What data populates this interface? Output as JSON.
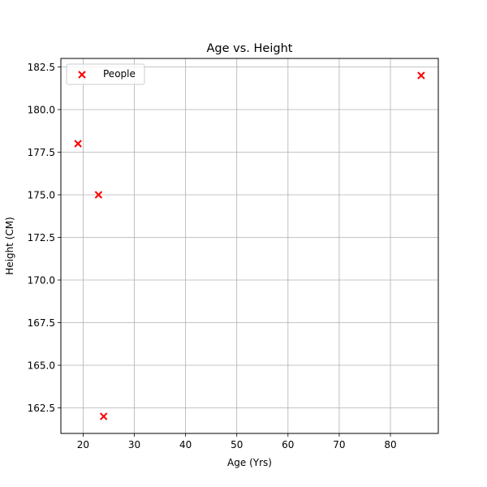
{
  "chart_data": {
    "type": "scatter",
    "title": "Age vs. Height",
    "xlabel": "Age (Yrs)",
    "ylabel": "Height (CM)",
    "xlim": [
      15.65,
      89.35
    ],
    "ylim": [
      161.0,
      183.0
    ],
    "xticks": [
      20,
      30,
      40,
      50,
      60,
      70,
      80
    ],
    "xtick_labels": [
      "20",
      "30",
      "40",
      "50",
      "60",
      "70",
      "80"
    ],
    "yticks": [
      162.5,
      165.0,
      167.5,
      170.0,
      172.5,
      175.0,
      177.5,
      180.0,
      182.5
    ],
    "ytick_labels": [
      "162.5",
      "165.0",
      "167.5",
      "170.0",
      "172.5",
      "175.0",
      "177.5",
      "180.0",
      "182.5"
    ],
    "grid": true,
    "legend_position": "top-left",
    "series": [
      {
        "name": "People",
        "marker": "x",
        "color": "#ff0000",
        "points": [
          {
            "x": 19,
            "y": 178
          },
          {
            "x": 23,
            "y": 175
          },
          {
            "x": 24,
            "y": 162
          },
          {
            "x": 86,
            "y": 182
          }
        ]
      }
    ]
  }
}
